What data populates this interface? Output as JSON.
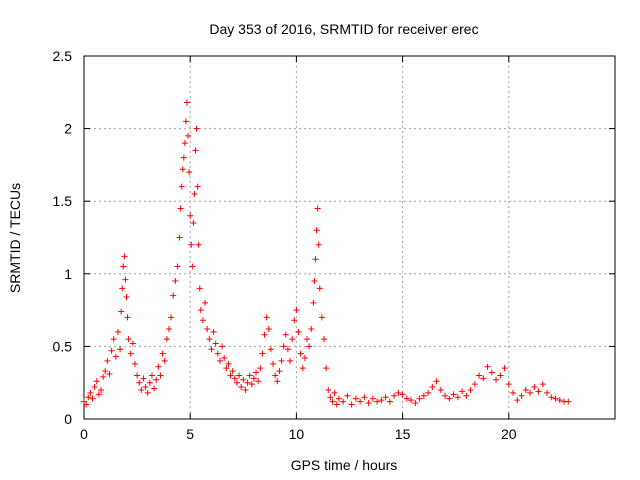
{
  "chart_data": {
    "type": "scatter",
    "title": "Day 353 of 2016, SRMTID for receiver erec",
    "xlabel": "GPS time / hours",
    "ylabel": "SRMTID / TECUs",
    "xlim": [
      0,
      25
    ],
    "ylim": [
      0,
      2.5
    ],
    "x_ticks": [
      0,
      5,
      10,
      15,
      20
    ],
    "x_tick_labels": [
      "0",
      "5",
      "10",
      "15",
      "20"
    ],
    "y_ticks": [
      0,
      0.5,
      1,
      1.5,
      2,
      2.5
    ],
    "y_tick_labels": [
      "0",
      "0.5",
      "1",
      "1.5",
      "2",
      "2.5"
    ],
    "grid": true,
    "marker": "plus",
    "series": [
      {
        "name": "SRMTID",
        "color": "#ff0000",
        "points": [
          [
            0.0,
            0.12
          ],
          [
            0.1,
            0.1
          ],
          [
            0.2,
            0.15
          ],
          [
            0.3,
            0.18
          ],
          [
            0.4,
            0.14
          ],
          [
            0.5,
            0.22
          ],
          [
            0.6,
            0.26
          ],
          [
            0.7,
            0.17
          ],
          [
            0.8,
            0.2
          ],
          [
            0.9,
            0.29
          ],
          [
            1.0,
            0.33
          ],
          [
            1.1,
            0.4
          ],
          [
            1.2,
            0.31
          ],
          [
            1.3,
            0.47
          ],
          [
            1.4,
            0.55
          ],
          [
            1.5,
            0.43
          ],
          [
            1.6,
            0.6
          ],
          [
            1.7,
            0.48
          ],
          [
            1.75,
            0.74
          ],
          [
            1.8,
            0.9
          ],
          [
            1.85,
            1.05
          ],
          [
            1.9,
            1.12
          ],
          [
            1.95,
            0.96
          ],
          [
            2.0,
            0.84
          ],
          [
            2.05,
            0.7
          ],
          [
            2.1,
            0.55
          ],
          [
            2.2,
            0.45
          ],
          [
            2.3,
            0.52
          ],
          [
            2.4,
            0.38
          ],
          [
            2.5,
            0.3
          ],
          [
            2.6,
            0.25
          ],
          [
            2.7,
            0.2
          ],
          [
            2.8,
            0.28
          ],
          [
            2.9,
            0.22
          ],
          [
            3.0,
            0.18
          ],
          [
            3.1,
            0.25
          ],
          [
            3.2,
            0.3
          ],
          [
            3.3,
            0.21
          ],
          [
            3.4,
            0.27
          ],
          [
            3.5,
            0.36
          ],
          [
            3.6,
            0.3
          ],
          [
            3.7,
            0.45
          ],
          [
            3.8,
            0.4
          ],
          [
            3.9,
            0.55
          ],
          [
            4.0,
            0.62
          ],
          [
            4.1,
            0.7
          ],
          [
            4.2,
            0.85
          ],
          [
            4.3,
            0.95
          ],
          [
            4.4,
            1.05
          ],
          [
            4.5,
            1.25
          ],
          [
            4.55,
            1.45
          ],
          [
            4.6,
            1.6
          ],
          [
            4.65,
            1.72
          ],
          [
            4.7,
            1.8
          ],
          [
            4.75,
            1.9
          ],
          [
            4.8,
            2.05
          ],
          [
            4.85,
            2.18
          ],
          [
            4.9,
            1.95
          ],
          [
            4.95,
            1.7
          ],
          [
            5.0,
            1.4
          ],
          [
            5.05,
            1.2
          ],
          [
            5.1,
            1.05
          ],
          [
            5.15,
            1.35
          ],
          [
            5.2,
            1.55
          ],
          [
            5.25,
            1.85
          ],
          [
            5.3,
            2.0
          ],
          [
            5.35,
            1.6
          ],
          [
            5.4,
            1.2
          ],
          [
            5.45,
            0.9
          ],
          [
            5.5,
            0.75
          ],
          [
            5.6,
            0.68
          ],
          [
            5.7,
            0.8
          ],
          [
            5.8,
            0.62
          ],
          [
            5.9,
            0.55
          ],
          [
            6.0,
            0.48
          ],
          [
            6.1,
            0.6
          ],
          [
            6.2,
            0.52
          ],
          [
            6.3,
            0.45
          ],
          [
            6.4,
            0.4
          ],
          [
            6.5,
            0.5
          ],
          [
            6.6,
            0.42
          ],
          [
            6.7,
            0.35
          ],
          [
            6.8,
            0.38
          ],
          [
            6.9,
            0.3
          ],
          [
            7.0,
            0.33
          ],
          [
            7.1,
            0.28
          ],
          [
            7.2,
            0.25
          ],
          [
            7.3,
            0.3
          ],
          [
            7.4,
            0.22
          ],
          [
            7.5,
            0.27
          ],
          [
            7.6,
            0.2
          ],
          [
            7.7,
            0.25
          ],
          [
            7.8,
            0.3
          ],
          [
            7.9,
            0.24
          ],
          [
            8.0,
            0.28
          ],
          [
            8.1,
            0.32
          ],
          [
            8.2,
            0.26
          ],
          [
            8.3,
            0.35
          ],
          [
            8.4,
            0.45
          ],
          [
            8.5,
            0.58
          ],
          [
            8.6,
            0.7
          ],
          [
            8.7,
            0.62
          ],
          [
            8.8,
            0.48
          ],
          [
            8.9,
            0.38
          ],
          [
            9.0,
            0.3
          ],
          [
            9.1,
            0.26
          ],
          [
            9.2,
            0.33
          ],
          [
            9.3,
            0.4
          ],
          [
            9.4,
            0.5
          ],
          [
            9.5,
            0.58
          ],
          [
            9.6,
            0.48
          ],
          [
            9.7,
            0.4
          ],
          [
            9.8,
            0.55
          ],
          [
            9.9,
            0.68
          ],
          [
            10.0,
            0.75
          ],
          [
            10.1,
            0.6
          ],
          [
            10.2,
            0.45
          ],
          [
            10.3,
            0.35
          ],
          [
            10.4,
            0.42
          ],
          [
            10.5,
            0.55
          ],
          [
            10.6,
            0.5
          ],
          [
            10.7,
            0.62
          ],
          [
            10.8,
            0.8
          ],
          [
            10.85,
            0.95
          ],
          [
            10.9,
            1.1
          ],
          [
            10.95,
            1.3
          ],
          [
            11.0,
            1.45
          ],
          [
            11.05,
            1.2
          ],
          [
            11.1,
            0.9
          ],
          [
            11.2,
            0.7
          ],
          [
            11.3,
            0.55
          ],
          [
            11.4,
            0.35
          ],
          [
            11.5,
            0.2
          ],
          [
            11.6,
            0.15
          ],
          [
            11.7,
            0.12
          ],
          [
            11.8,
            0.18
          ],
          [
            11.9,
            0.1
          ],
          [
            12.0,
            0.14
          ],
          [
            12.2,
            0.12
          ],
          [
            12.4,
            0.16
          ],
          [
            12.6,
            0.1
          ],
          [
            12.8,
            0.14
          ],
          [
            13.0,
            0.12
          ],
          [
            13.2,
            0.15
          ],
          [
            13.4,
            0.11
          ],
          [
            13.6,
            0.14
          ],
          [
            13.8,
            0.12
          ],
          [
            14.0,
            0.13
          ],
          [
            14.2,
            0.15
          ],
          [
            14.4,
            0.12
          ],
          [
            14.6,
            0.16
          ],
          [
            14.8,
            0.18
          ],
          [
            15.0,
            0.17
          ],
          [
            15.2,
            0.14
          ],
          [
            15.4,
            0.13
          ],
          [
            15.6,
            0.11
          ],
          [
            15.8,
            0.14
          ],
          [
            16.0,
            0.16
          ],
          [
            16.2,
            0.18
          ],
          [
            16.4,
            0.22
          ],
          [
            16.6,
            0.26
          ],
          [
            16.8,
            0.2
          ],
          [
            17.0,
            0.16
          ],
          [
            17.2,
            0.14
          ],
          [
            17.4,
            0.17
          ],
          [
            17.6,
            0.15
          ],
          [
            17.8,
            0.19
          ],
          [
            18.0,
            0.16
          ],
          [
            18.2,
            0.2
          ],
          [
            18.4,
            0.24
          ],
          [
            18.6,
            0.3
          ],
          [
            18.8,
            0.28
          ],
          [
            19.0,
            0.36
          ],
          [
            19.2,
            0.32
          ],
          [
            19.4,
            0.27
          ],
          [
            19.6,
            0.3
          ],
          [
            19.8,
            0.35
          ],
          [
            20.0,
            0.24
          ],
          [
            20.2,
            0.18
          ],
          [
            20.4,
            0.13
          ],
          [
            20.6,
            0.16
          ],
          [
            20.8,
            0.2
          ],
          [
            21.0,
            0.18
          ],
          [
            21.2,
            0.22
          ],
          [
            21.4,
            0.19
          ],
          [
            21.6,
            0.24
          ],
          [
            21.8,
            0.18
          ],
          [
            22.0,
            0.15
          ],
          [
            22.2,
            0.14
          ],
          [
            22.4,
            0.13
          ],
          [
            22.6,
            0.12
          ],
          [
            22.8,
            0.12
          ]
        ]
      }
    ]
  }
}
